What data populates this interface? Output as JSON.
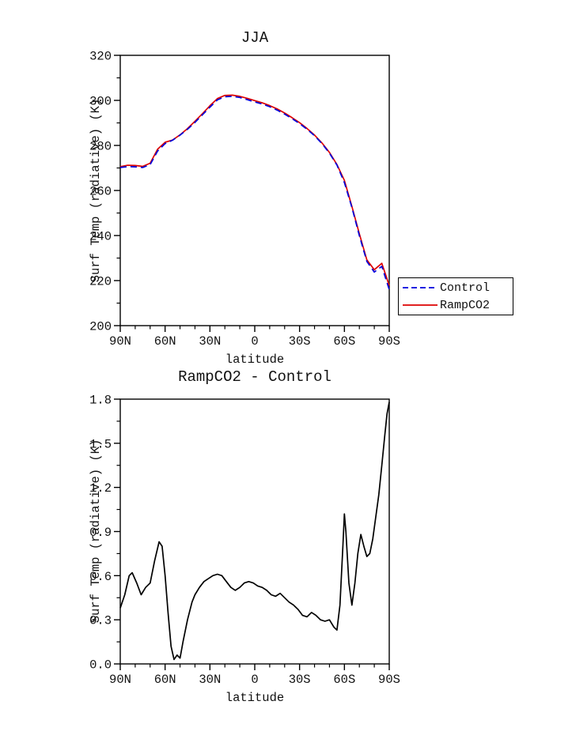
{
  "page": {
    "background": "#ffffff",
    "text_color": "#111111"
  },
  "top_chart": {
    "title": "JJA",
    "xlabel": "latitude",
    "ylabel": "Surf Temp (radiative) (K)"
  },
  "bottom_chart": {
    "title": "RampCO2 - Control",
    "xlabel": "latitude",
    "ylabel": "Surf Temp (radiative) (K)"
  },
  "legend": {
    "position": "outside-right",
    "items": [
      {
        "label": "Control",
        "color": "#0000dd",
        "style": "dashed"
      },
      {
        "label": "RampCO2",
        "color": "#dd0000",
        "style": "solid"
      }
    ]
  },
  "chart_data": [
    {
      "type": "line",
      "title": "JJA",
      "xlabel": "latitude",
      "ylabel": "Surf Temp (radiative) (K)",
      "xlim": [
        90,
        -90
      ],
      "x_ticks": [
        {
          "value": 90,
          "label": "90N"
        },
        {
          "value": 60,
          "label": "60N"
        },
        {
          "value": 30,
          "label": "30N"
        },
        {
          "value": 0,
          "label": "0"
        },
        {
          "value": -30,
          "label": "30S"
        },
        {
          "value": -60,
          "label": "60S"
        },
        {
          "value": -90,
          "label": "90S"
        }
      ],
      "x_minor_step": 10,
      "ylim": [
        200,
        320
      ],
      "y_ticks": [
        {
          "value": 200,
          "label": "200"
        },
        {
          "value": 220,
          "label": "220"
        },
        {
          "value": 240,
          "label": "240"
        },
        {
          "value": 260,
          "label": "260"
        },
        {
          "value": 280,
          "label": "280"
        },
        {
          "value": 300,
          "label": "300"
        },
        {
          "value": 320,
          "label": "320"
        }
      ],
      "grid": false,
      "legend_position": "outside-right",
      "x": [
        90,
        85,
        80,
        75,
        70,
        65,
        60,
        55,
        50,
        45,
        40,
        35,
        30,
        25,
        20,
        15,
        10,
        5,
        0,
        -5,
        -10,
        -15,
        -20,
        -25,
        -30,
        -35,
        -40,
        -45,
        -50,
        -55,
        -60,
        -65,
        -70,
        -75,
        -80,
        -85,
        -90
      ],
      "series": [
        {
          "name": "Control",
          "color": "#0000dd",
          "style": "dashed",
          "values": [
            270.2,
            270.6,
            270.5,
            270.2,
            271.5,
            277.5,
            280.8,
            282.3,
            284.6,
            287.2,
            290.2,
            293.6,
            297.0,
            300.2,
            301.6,
            301.8,
            301.3,
            300.3,
            299.3,
            298.4,
            297.2,
            295.7,
            293.9,
            291.9,
            289.7,
            287.2,
            284.3,
            280.8,
            276.6,
            271.3,
            263.5,
            252.5,
            240.0,
            228.5,
            223.8,
            226.3,
            216.0
          ]
        },
        {
          "name": "RampCO2",
          "color": "#dd0000",
          "style": "solid",
          "values": [
            270.6,
            271.2,
            271.1,
            270.7,
            272.1,
            278.3,
            281.4,
            282.4,
            284.7,
            287.5,
            290.7,
            294.1,
            297.6,
            300.8,
            302.2,
            302.3,
            301.8,
            300.9,
            299.9,
            298.9,
            297.7,
            296.2,
            294.4,
            292.3,
            290.1,
            287.5,
            284.6,
            281.1,
            276.9,
            271.5,
            264.5,
            252.9,
            240.8,
            229.2,
            224.8,
            227.7,
            217.8
          ]
        }
      ]
    },
    {
      "type": "line",
      "title": "RampCO2 - Control",
      "xlabel": "latitude",
      "ylabel": "Surf Temp (radiative) (K)",
      "xlim": [
        90,
        -90
      ],
      "x_ticks": [
        {
          "value": 90,
          "label": "90N"
        },
        {
          "value": 60,
          "label": "60N"
        },
        {
          "value": 30,
          "label": "30N"
        },
        {
          "value": 0,
          "label": "0"
        },
        {
          "value": -30,
          "label": "30S"
        },
        {
          "value": -60,
          "label": "60S"
        },
        {
          "value": -90,
          "label": "90S"
        }
      ],
      "x_minor_step": 10,
      "ylim": [
        0.0,
        1.8
      ],
      "y_ticks": [
        {
          "value": 0.0,
          "label": "0.0"
        },
        {
          "value": 0.3,
          "label": "0.3"
        },
        {
          "value": 0.6,
          "label": "0.6"
        },
        {
          "value": 0.9,
          "label": "0.9"
        },
        {
          "value": 1.2,
          "label": "1.2"
        },
        {
          "value": 1.5,
          "label": "1.5"
        },
        {
          "value": 1.8,
          "label": "1.8"
        }
      ],
      "grid": false,
      "legend_position": "none",
      "x": [
        90,
        87,
        84,
        82,
        79,
        76,
        73,
        70,
        67,
        64,
        62,
        60,
        58,
        56,
        54,
        52,
        50,
        48,
        45,
        42,
        40,
        37,
        34,
        31,
        28,
        25,
        22,
        19,
        16,
        13,
        10,
        7,
        4,
        1,
        -2,
        -5,
        -8,
        -11,
        -14,
        -17,
        -20,
        -23,
        -26,
        -29,
        -32,
        -35,
        -38,
        -41,
        -44,
        -47,
        -50,
        -53,
        -55,
        -57,
        -59,
        -60,
        -61,
        -63,
        -65,
        -67,
        -69,
        -71,
        -73,
        -75,
        -77,
        -79,
        -81,
        -83,
        -85,
        -87,
        -88.5,
        -90
      ],
      "series": [
        {
          "name": "RampCO2 - Control",
          "color": "#000000",
          "style": "solid",
          "values": [
            0.38,
            0.47,
            0.6,
            0.62,
            0.55,
            0.47,
            0.52,
            0.55,
            0.7,
            0.83,
            0.8,
            0.6,
            0.35,
            0.12,
            0.03,
            0.06,
            0.04,
            0.15,
            0.3,
            0.42,
            0.47,
            0.52,
            0.56,
            0.58,
            0.6,
            0.61,
            0.6,
            0.56,
            0.52,
            0.5,
            0.52,
            0.55,
            0.56,
            0.55,
            0.53,
            0.52,
            0.5,
            0.47,
            0.46,
            0.48,
            0.45,
            0.42,
            0.4,
            0.37,
            0.33,
            0.32,
            0.35,
            0.33,
            0.3,
            0.29,
            0.3,
            0.25,
            0.23,
            0.4,
            0.8,
            1.02,
            0.9,
            0.55,
            0.4,
            0.55,
            0.75,
            0.88,
            0.8,
            0.73,
            0.75,
            0.85,
            1.0,
            1.15,
            1.35,
            1.55,
            1.7,
            1.78
          ]
        }
      ]
    }
  ]
}
